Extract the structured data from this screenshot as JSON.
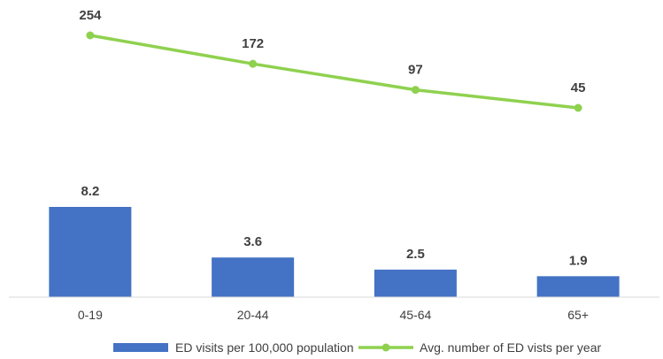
{
  "chart_data": {
    "type": "bar",
    "categories": [
      "0-19",
      "20-44",
      "45-64",
      "65+"
    ],
    "series": [
      {
        "name": "ED visits per 100,000 population",
        "type": "bar",
        "values": [
          8.2,
          3.6,
          2.5,
          1.9
        ],
        "labels": [
          "8.2",
          "3.6",
          "2.5",
          "1.9"
        ],
        "color": "#4472c4"
      },
      {
        "name": "Avg. number of ED vists per year",
        "type": "line",
        "values": [
          254,
          172,
          97,
          45
        ],
        "labels": [
          "254",
          "172",
          "97",
          "45"
        ],
        "color": "#8fd14f"
      }
    ],
    "title": "",
    "xlabel": "",
    "ylabel": "",
    "axis_color": "#d9d9d9",
    "legend_position": "bottom",
    "grid": false
  }
}
